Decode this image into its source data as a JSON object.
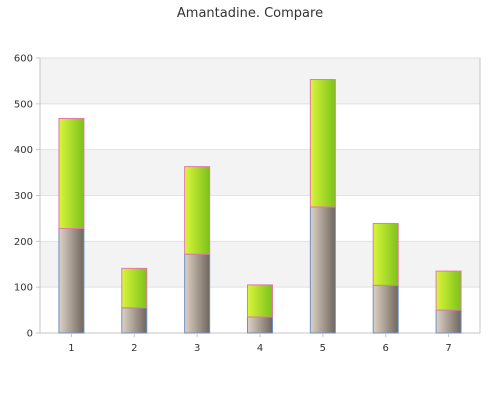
{
  "chart_data": {
    "type": "bar",
    "stacked": true,
    "title": "Amantadine. Compare",
    "xlabel": "",
    "ylabel": "",
    "categories": [
      "1",
      "2",
      "3",
      "4",
      "5",
      "6",
      "7"
    ],
    "series": [
      {
        "values": [
          228,
          55,
          172,
          35,
          275,
          104,
          50
        ]
      },
      {
        "values": [
          240,
          86,
          191,
          70,
          278,
          135,
          85
        ]
      }
    ],
    "ylim": [
      0,
      600
    ],
    "yticks": [
      0,
      100,
      200,
      300,
      400,
      500,
      600
    ],
    "grid": true,
    "legend": "none",
    "colors": {
      "series_0_light": "#ddd2c4",
      "series_0_dark": "#6f665e",
      "series_0_border": "#6f8fc6",
      "series_1_light": "#d9f53a",
      "series_1_dark": "#7cc21a",
      "series_1_border": "#e27aa7",
      "band": "#f3f3f3",
      "grid": "#e2e2e2",
      "axis": "#c6c6c6"
    }
  }
}
